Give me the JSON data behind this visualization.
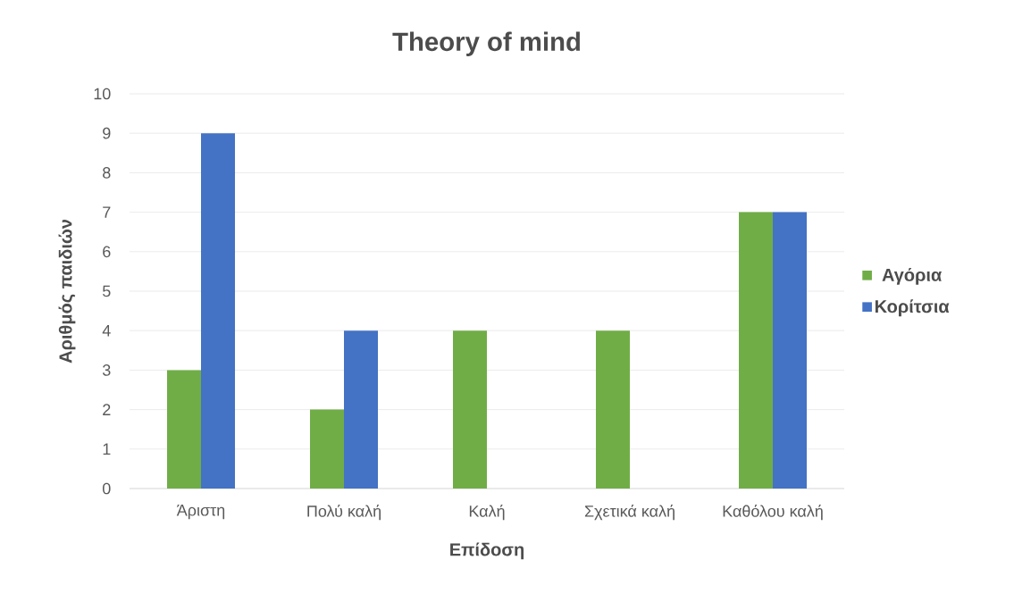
{
  "chart_data": {
    "type": "bar",
    "title": "Theory of mind",
    "xlabel": "Επίδοση",
    "ylabel": "Αριθμός παιδιών",
    "categories": [
      "Άριστη",
      "Πολύ καλή",
      "Καλή",
      "Σχετικά καλή",
      "Καθόλου καλή"
    ],
    "series": [
      {
        "name": "Αγόρια",
        "color": "#70ad47",
        "values": [
          3,
          2,
          4,
          4,
          7
        ]
      },
      {
        "name": "Κορίτσια",
        "color": "#4472c4",
        "values": [
          9,
          4,
          0,
          0,
          7
        ]
      }
    ],
    "ylim": [
      0,
      10
    ],
    "yticks": [
      0,
      1,
      2,
      3,
      4,
      5,
      6,
      7,
      8,
      9,
      10
    ],
    "grid": "y",
    "legend": "right"
  }
}
